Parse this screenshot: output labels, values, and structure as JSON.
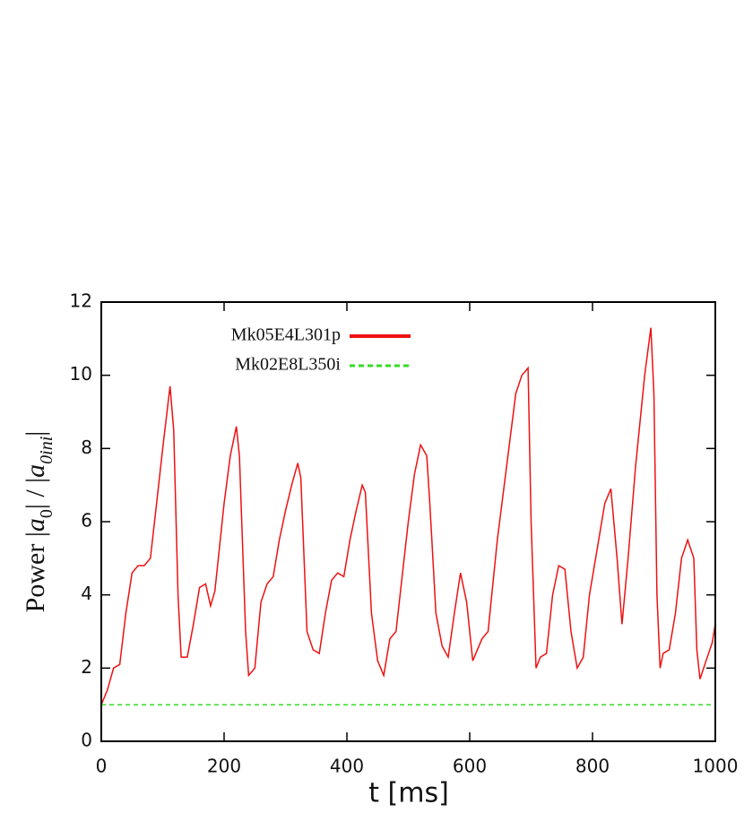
{
  "chart_data": {
    "type": "line",
    "xlabel": "t [ms]",
    "ylabel": [
      {
        "text": "Power  |"
      },
      {
        "text": "a",
        "italic": true
      },
      {
        "text": "0",
        "sub": true
      },
      {
        "text": "| / |"
      },
      {
        "text": "a",
        "italic": true
      },
      {
        "text": "0ini",
        "sub": true,
        "italic": true
      },
      {
        "text": "|"
      }
    ],
    "xlim": [
      0,
      1000
    ],
    "ylim": [
      0,
      12
    ],
    "xticks": [
      0,
      200,
      400,
      600,
      800,
      1000
    ],
    "yticks": [
      0,
      2,
      4,
      6,
      8,
      10,
      12
    ],
    "legend": "top-left",
    "series": [
      {
        "name": "Mk05E4L301p",
        "color": "#ee1111",
        "dash": false,
        "x": [
          0,
          10,
          20,
          30,
          40,
          50,
          60,
          70,
          80,
          90,
          100,
          112,
          118,
          125,
          130,
          140,
          150,
          160,
          170,
          178,
          185,
          200,
          210,
          220,
          225,
          235,
          240,
          250,
          260,
          270,
          280,
          290,
          300,
          310,
          320,
          325,
          335,
          345,
          355,
          365,
          375,
          385,
          395,
          405,
          415,
          425,
          430,
          440,
          450,
          460,
          470,
          480,
          490,
          500,
          510,
          520,
          530,
          535,
          545,
          555,
          565,
          575,
          585,
          595,
          605,
          620,
          630,
          645,
          660,
          675,
          685,
          695,
          700,
          708,
          715,
          725,
          735,
          745,
          755,
          765,
          775,
          785,
          795,
          810,
          820,
          830,
          840,
          848,
          858,
          870,
          885,
          895,
          900,
          905,
          910,
          915,
          925,
          935,
          945,
          955,
          965,
          970,
          975,
          985,
          995,
          1000
        ],
        "values": [
          1.0,
          1.4,
          2.0,
          2.1,
          3.5,
          4.6,
          4.8,
          4.8,
          5.0,
          6.5,
          8.0,
          9.7,
          8.5,
          4.0,
          2.3,
          2.3,
          3.2,
          4.2,
          4.3,
          3.7,
          4.1,
          6.5,
          7.8,
          8.6,
          7.8,
          3.0,
          1.8,
          2.0,
          3.8,
          4.3,
          4.5,
          5.5,
          6.3,
          7.0,
          7.6,
          7.2,
          3.0,
          2.5,
          2.4,
          3.5,
          4.4,
          4.6,
          4.5,
          5.5,
          6.3,
          7.0,
          6.8,
          3.5,
          2.2,
          1.8,
          2.8,
          3.0,
          4.5,
          6.0,
          7.3,
          8.1,
          7.8,
          6.5,
          3.5,
          2.6,
          2.3,
          3.5,
          4.6,
          3.8,
          2.2,
          2.8,
          3.0,
          5.5,
          7.5,
          9.5,
          10.0,
          10.2,
          6.0,
          2.0,
          2.3,
          2.4,
          4.0,
          4.8,
          4.7,
          3.0,
          2.0,
          2.3,
          4.0,
          5.5,
          6.5,
          6.9,
          5.0,
          3.2,
          5.0,
          7.5,
          10.0,
          11.3,
          9.5,
          4.0,
          2.0,
          2.4,
          2.5,
          3.5,
          5.0,
          5.5,
          5.0,
          2.5,
          1.7,
          2.2,
          2.7,
          3.2
        ]
      },
      {
        "name": "Mk02E8L350i",
        "color": "#33dd22",
        "dash": true,
        "x": [
          0,
          1000
        ],
        "values": [
          1.0,
          1.0
        ]
      }
    ]
  }
}
